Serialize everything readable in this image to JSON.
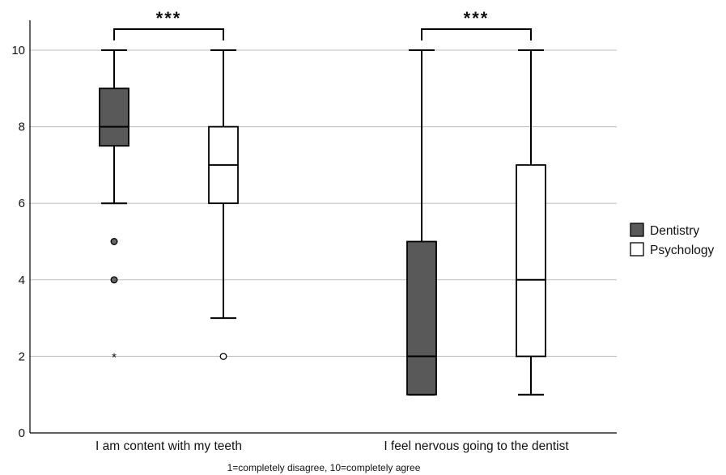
{
  "chart_data": {
    "type": "boxplot",
    "xlabel": "1=completely disagree, 10=completely agree",
    "ylim": [
      0,
      10.5
    ],
    "yticks": [
      0,
      2,
      4,
      6,
      8,
      10
    ],
    "grid": true,
    "legend_position": "right",
    "categories": [
      "I am content with my teeth",
      "I feel nervous going to the dentist"
    ],
    "series": [
      {
        "name": "Dentistry",
        "color": "#595959",
        "boxes": [
          {
            "min": 6,
            "q1": 7.5,
            "median": 8,
            "q3": 9,
            "max": 10,
            "outliers": [
              {
                "value": 5,
                "kind": "circle"
              },
              {
                "value": 4,
                "kind": "circle"
              },
              {
                "value": 2,
                "kind": "star"
              }
            ]
          },
          {
            "min": 1,
            "q1": 1,
            "median": 2,
            "q3": 5,
            "max": 10,
            "outliers": []
          }
        ]
      },
      {
        "name": "Psychology",
        "color": "#ffffff",
        "boxes": [
          {
            "min": 3,
            "q1": 6,
            "median": 7,
            "q3": 8,
            "max": 10,
            "outliers": [
              {
                "value": 2,
                "kind": "circle"
              }
            ]
          },
          {
            "min": 1,
            "q1": 2,
            "median": 4,
            "q3": 7,
            "max": 10,
            "outliers": []
          }
        ]
      }
    ],
    "significance": [
      {
        "category": 0,
        "label": "***"
      },
      {
        "category": 1,
        "label": "***"
      }
    ]
  }
}
